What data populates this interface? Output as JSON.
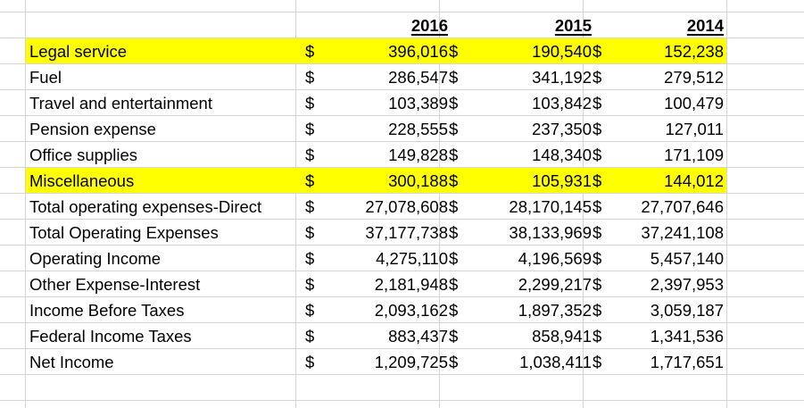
{
  "sheet": {
    "headers": [
      "2016",
      "2015",
      "2014"
    ],
    "currency_symbol": "$",
    "highlight_color": "#ffff00",
    "rows": [
      {
        "label": "Legal service",
        "values": [
          "396,016",
          "190,540",
          "152,238"
        ],
        "highlight": true
      },
      {
        "label": "Fuel",
        "values": [
          "286,547",
          "341,192",
          "279,512"
        ],
        "highlight": false
      },
      {
        "label": "Travel and entertainment",
        "values": [
          "103,389",
          "103,842",
          "100,479"
        ],
        "highlight": false
      },
      {
        "label": "Pension expense",
        "values": [
          "228,555",
          "237,350",
          "127,011"
        ],
        "highlight": false
      },
      {
        "label": "Office supplies",
        "values": [
          "149,828",
          "148,340",
          "171,109"
        ],
        "highlight": false
      },
      {
        "label": "Miscellaneous",
        "values": [
          "300,188",
          "105,931",
          "144,012"
        ],
        "highlight": true
      },
      {
        "label": "Total operating expenses-Direct",
        "values": [
          "27,078,608",
          "28,170,145",
          "27,707,646"
        ],
        "highlight": false
      },
      {
        "label": "Total Operating Expenses",
        "values": [
          "37,177,738",
          "38,133,969",
          "37,241,108"
        ],
        "highlight": false
      },
      {
        "label": "Operating Income",
        "values": [
          "4,275,110",
          "4,196,569",
          "5,457,140"
        ],
        "highlight": false
      },
      {
        "label": "Other Expense-Interest",
        "values": [
          "2,181,948",
          "2,299,217",
          "2,397,953"
        ],
        "highlight": false
      },
      {
        "label": "Income Before Taxes",
        "values": [
          "2,093,162",
          "1,897,352",
          "3,059,187"
        ],
        "highlight": false
      },
      {
        "label": "Federal Income Taxes",
        "values": [
          "883,437",
          "858,941",
          "1,341,536"
        ],
        "highlight": false
      },
      {
        "label": "Net Income",
        "values": [
          "1,209,725",
          "1,038,411",
          "1,717,651"
        ],
        "highlight": false
      }
    ]
  }
}
